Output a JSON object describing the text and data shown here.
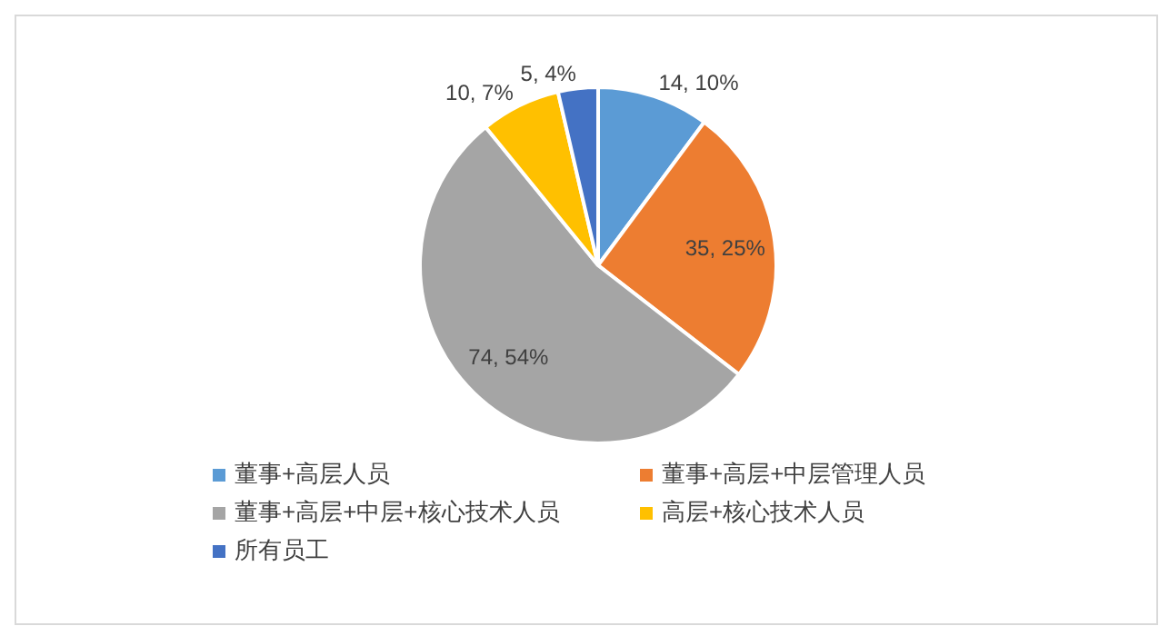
{
  "chart_data": {
    "type": "pie",
    "categories": [
      "董事+高层人员",
      "董事+高层+中层管理人员",
      "董事+高层+中层+核心技术人员",
      "高层+核心技术人员",
      "所有员工"
    ],
    "values": [
      14,
      35,
      74,
      10,
      5
    ],
    "colors": [
      "#5b9bd5",
      "#ed7d31",
      "#a5a5a5",
      "#ffc000",
      "#4472c4"
    ],
    "value_labels": [
      "14, 10%",
      "35, 25%",
      "74, 54%",
      "10, 7%",
      "5, 4%"
    ],
    "legend": "bottom"
  }
}
